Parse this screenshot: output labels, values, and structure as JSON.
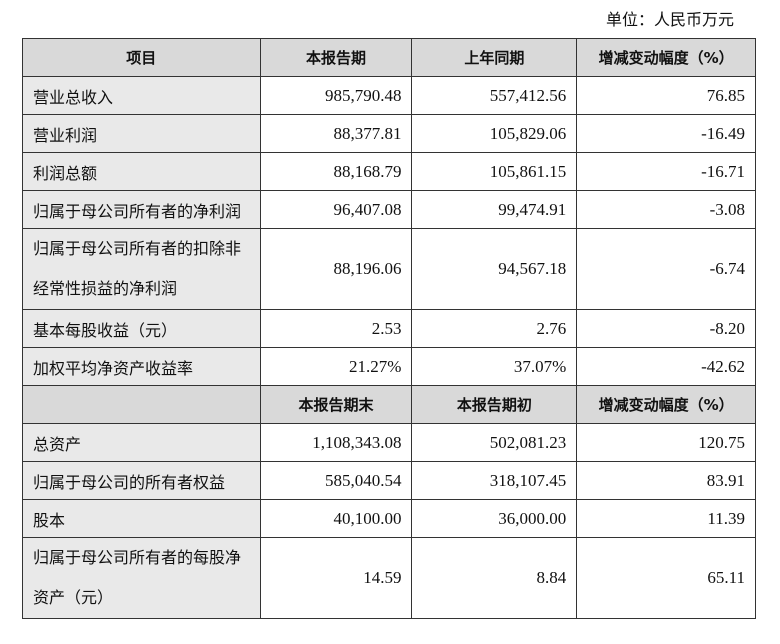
{
  "unit": "单位：人民币万元",
  "header1": [
    "项目",
    "本报告期",
    "上年同期",
    "增减变动幅度（%）"
  ],
  "rows1": [
    [
      "营业总收入",
      "985,790.48",
      "557,412.56",
      "76.85"
    ],
    [
      "营业利润",
      "88,377.81",
      "105,829.06",
      "-16.49"
    ],
    [
      "利润总额",
      "88,168.79",
      "105,861.15",
      "-16.71"
    ],
    [
      "归属于母公司所有者的净利润",
      "96,407.08",
      "99,474.91",
      "-3.08"
    ],
    [
      "归属于母公司所有者的扣除非经常性损益的净利润",
      "88,196.06",
      "94,567.18",
      "-6.74"
    ],
    [
      "基本每股收益（元）",
      "2.53",
      "2.76",
      "-8.20"
    ],
    [
      "加权平均净资产收益率",
      "21.27%",
      "37.07%",
      "-42.62"
    ]
  ],
  "header2": [
    "",
    "本报告期末",
    "本报告期初",
    "增减变动幅度（%）"
  ],
  "rows2": [
    [
      "总资产",
      "1,108,343.08",
      "502,081.23",
      "120.75"
    ],
    [
      "归属于母公司的所有者权益",
      "585,040.54",
      "318,107.45",
      "83.91"
    ],
    [
      "股本",
      "40,100.00",
      "36,000.00",
      "11.39"
    ],
    [
      "归属于母公司所有者的每股净资产（元）",
      "14.59",
      "8.84",
      "65.11"
    ]
  ]
}
